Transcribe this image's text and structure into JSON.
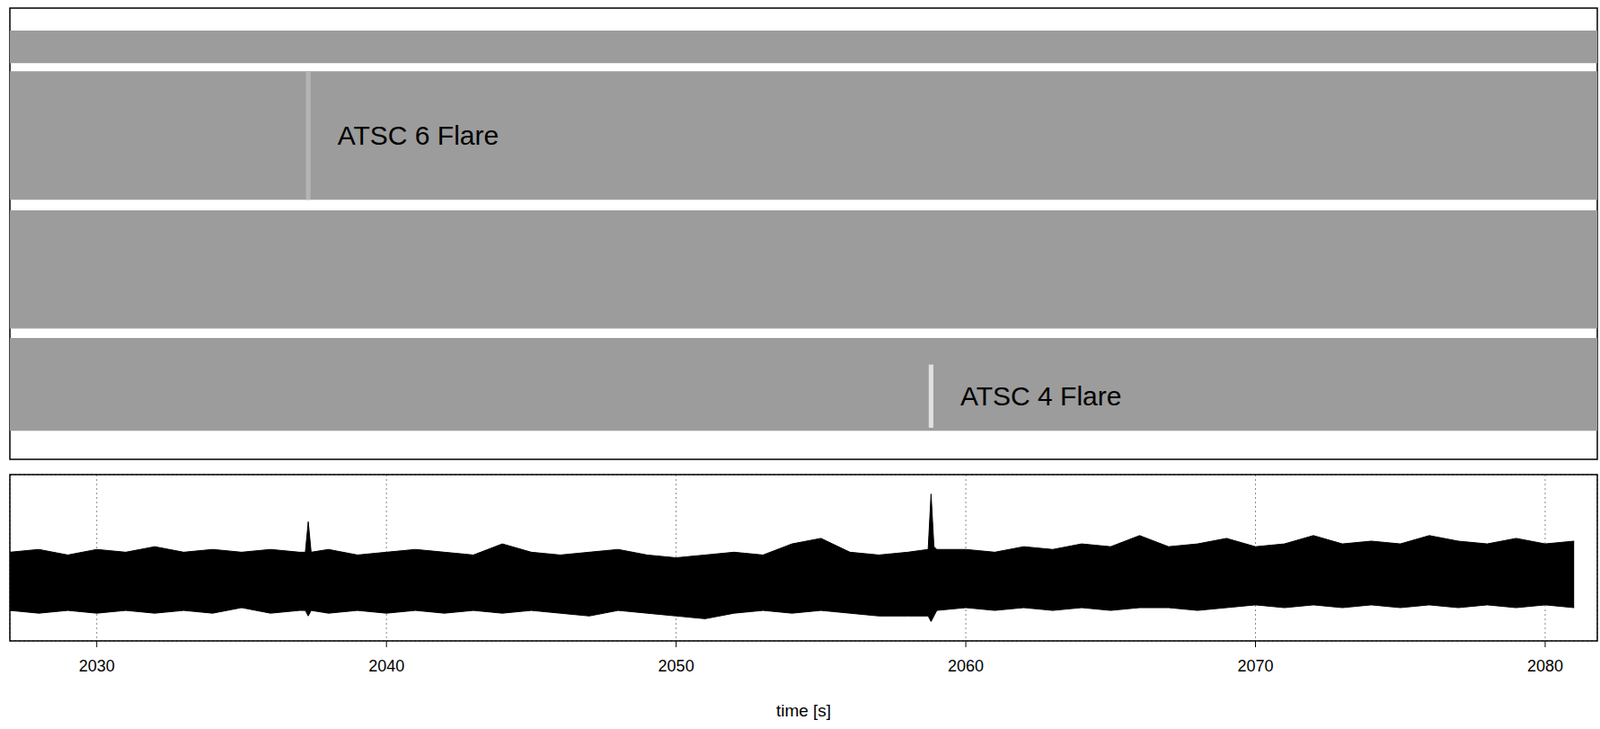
{
  "chart_data": [
    {
      "type": "heatmap",
      "tick_labels": false,
      "xlim": [
        2027,
        2081.8
      ],
      "ylim": [
        0,
        100
      ],
      "color": "#9c9c9c",
      "bands": [
        [
          6.3,
          26.9
        ],
        [
          29,
          55.2
        ],
        [
          57.5,
          86
        ],
        [
          87.8,
          95
        ]
      ],
      "annotations": [
        {
          "text": "ATSC 6 Flare",
          "x": 2037.3,
          "y": [
            57.5,
            86
          ]
        },
        {
          "text": "ATSC 4 Flare",
          "x": 2058.8,
          "y": [
            7,
            21
          ]
        }
      ]
    },
    {
      "type": "range_area",
      "x_label": "time [s]",
      "x": [
        2027,
        2028,
        2029,
        2030,
        2031,
        2032,
        2033,
        2034,
        2035,
        2036,
        2037,
        2037.2,
        2037.3,
        2037.4,
        2038,
        2039,
        2040,
        2041,
        2042,
        2043,
        2044,
        2045,
        2046,
        2047,
        2048,
        2049,
        2050,
        2051,
        2052,
        2053,
        2054,
        2055,
        2056,
        2057,
        2058,
        2058.7,
        2058.8,
        2058.9,
        2059,
        2060,
        2061,
        2062,
        2063,
        2064,
        2065,
        2066,
        2067,
        2068,
        2069,
        2070,
        2071,
        2072,
        2073,
        2074,
        2075,
        2076,
        2077,
        2078,
        2079,
        2080,
        2081
      ],
      "series": [
        {
          "color": "#000000",
          "low": [
            1.1,
            1.0,
            1.1,
            1.0,
            1.1,
            1.0,
            1.1,
            1.0,
            1.2,
            1.0,
            1.1,
            1.1,
            0.9,
            1.1,
            1.0,
            1.1,
            1.0,
            1.1,
            1.0,
            1.1,
            1.0,
            1.1,
            1.0,
            0.9,
            1.1,
            1.0,
            0.9,
            0.8,
            1.0,
            1.1,
            1.0,
            1.1,
            1.0,
            0.9,
            0.9,
            0.9,
            0.7,
            0.9,
            1.1,
            1.2,
            1.1,
            1.2,
            1.1,
            1.2,
            1.1,
            1.2,
            1.2,
            1.1,
            1.2,
            1.3,
            1.2,
            1.3,
            1.2,
            1.3,
            1.2,
            1.3,
            1.2,
            1.3,
            1.2,
            1.3,
            1.2
          ],
          "high": [
            3.2,
            3.3,
            3.1,
            3.3,
            3.2,
            3.4,
            3.2,
            3.3,
            3.2,
            3.3,
            3.2,
            3.2,
            4.3,
            3.2,
            3.3,
            3.1,
            3.2,
            3.3,
            3.2,
            3.1,
            3.5,
            3.2,
            3.1,
            3.2,
            3.3,
            3.1,
            3.0,
            3.1,
            3.2,
            3.1,
            3.5,
            3.7,
            3.2,
            3.1,
            3.2,
            3.3,
            5.3,
            3.4,
            3.3,
            3.3,
            3.2,
            3.4,
            3.3,
            3.5,
            3.4,
            3.8,
            3.4,
            3.5,
            3.7,
            3.4,
            3.5,
            3.8,
            3.5,
            3.6,
            3.5,
            3.8,
            3.6,
            3.5,
            3.7,
            3.5,
            3.6
          ]
        }
      ],
      "xlim": [
        2027,
        2081.8
      ],
      "xticks": [
        2030,
        2040,
        2050,
        2060,
        2070,
        2080
      ],
      "ylim": [
        0,
        6
      ],
      "yticks": [
        0,
        1,
        2,
        3,
        4,
        5,
        6
      ],
      "grid": true,
      "tick_labels": "x"
    }
  ]
}
